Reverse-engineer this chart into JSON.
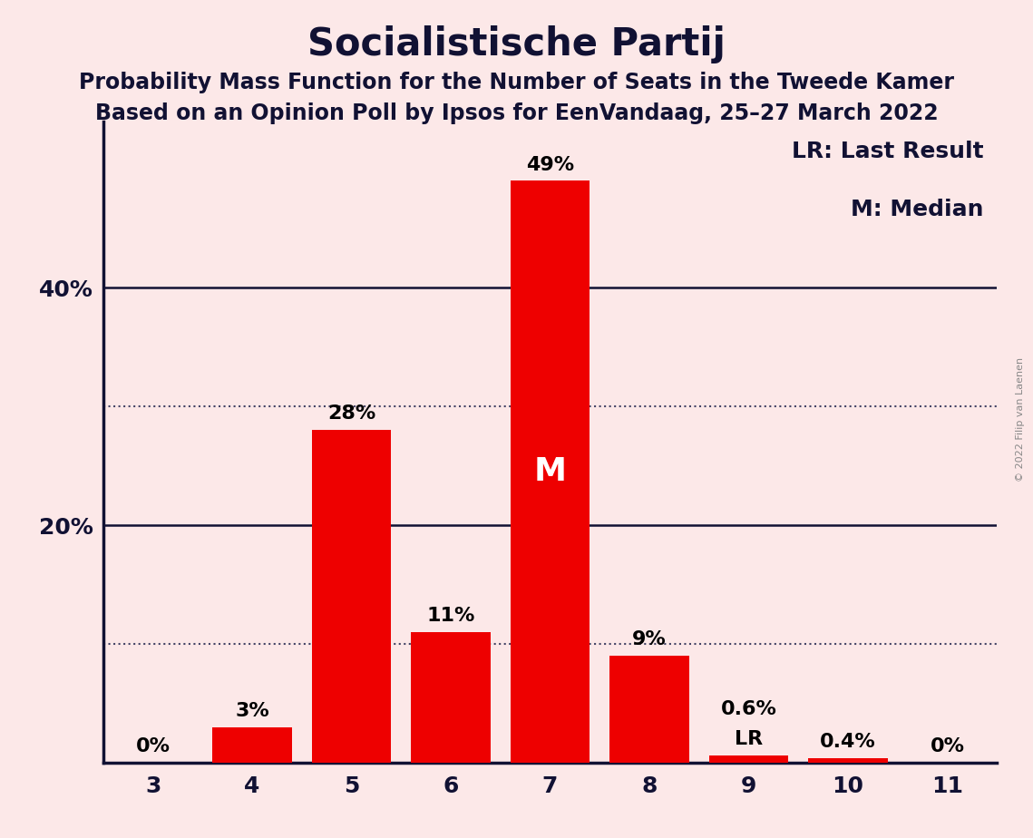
{
  "title": "Socialistische Partij",
  "subtitle1": "Probability Mass Function for the Number of Seats in the Tweede Kamer",
  "subtitle2": "Based on an Opinion Poll by Ipsos for EenVandaag, 25–27 March 2022",
  "copyright_text": "© 2022 Filip van Laenen",
  "categories": [
    3,
    4,
    5,
    6,
    7,
    8,
    9,
    10,
    11
  ],
  "values": [
    0.0,
    3.0,
    28.0,
    11.0,
    49.0,
    9.0,
    0.6,
    0.4,
    0.0
  ],
  "labels": [
    "0%",
    "3%",
    "28%",
    "11%",
    "49%",
    "9%",
    "0.6%",
    "0.4%",
    "0%"
  ],
  "bar_color": "#ee0000",
  "background_color": "#fce8e8",
  "median_bar": 7,
  "median_label": "M",
  "lr_bar": 9,
  "lr_label": "LR",
  "legend_lr": "LR: Last Result",
  "legend_m": "M: Median",
  "ylim": [
    0,
    54
  ],
  "solid_gridlines": [
    20,
    40
  ],
  "dotted_gridlines": [
    10,
    30
  ],
  "ytick_positions": [
    20,
    40
  ],
  "ytick_labels": [
    "20%",
    "40%"
  ],
  "title_fontsize": 30,
  "subtitle_fontsize": 17,
  "label_fontsize": 16,
  "tick_fontsize": 18,
  "legend_fontsize": 18
}
